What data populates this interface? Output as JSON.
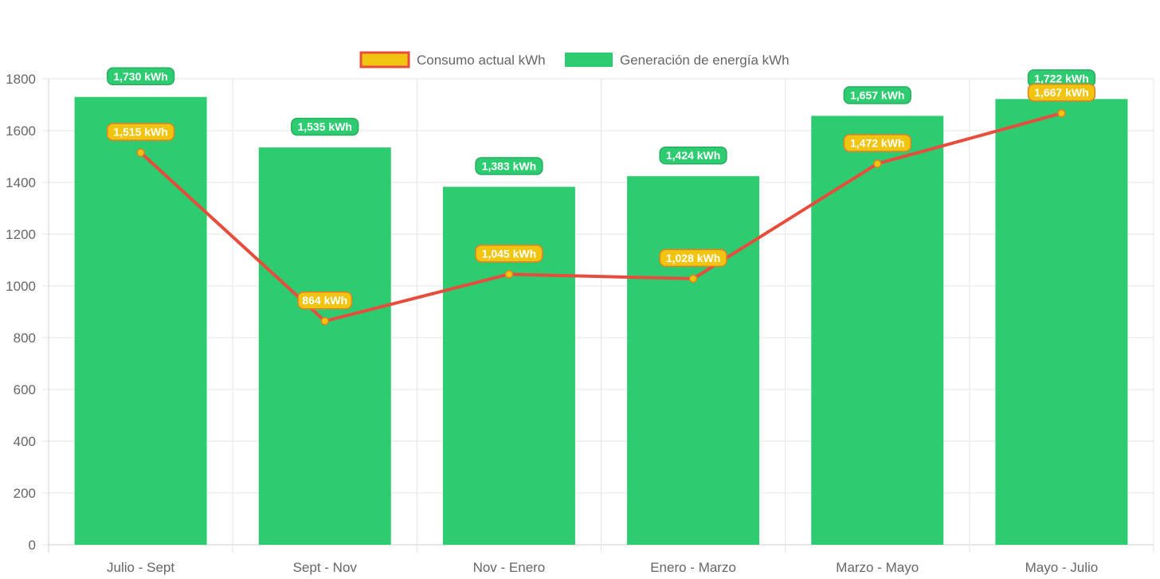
{
  "chart_data": {
    "type": "bar",
    "categories": [
      "Julio - Sept",
      "Sept - Nov",
      "Nov - Enero",
      "Enero - Marzo",
      "Marzo - Mayo",
      "Mayo - Julio"
    ],
    "series": [
      {
        "name": "Consumo actual kWh",
        "type": "line",
        "values": [
          1515,
          864,
          1045,
          1028,
          1472,
          1667
        ],
        "labels": [
          "1,515 kWh",
          "864 kWh",
          "1,045 kWh",
          "1,028 kWh",
          "1,472 kWh",
          "1,667 kWh"
        ],
        "color": "#e74c3c",
        "fill_color": "#f1c40f"
      },
      {
        "name": "Generación de energía kWh",
        "type": "bar",
        "values": [
          1730,
          1535,
          1383,
          1424,
          1657,
          1722
        ],
        "labels": [
          "1,730 kWh",
          "1,535 kWh",
          "1,383 kWh",
          "1,424 kWh",
          "1,657 kWh",
          "1,722 kWh"
        ],
        "color": "#2ecc71"
      }
    ],
    "y_ticks": [
      "0",
      "200",
      "400",
      "600",
      "800",
      "1000",
      "1200",
      "1400",
      "1600",
      "1800"
    ],
    "ylim": [
      0,
      1800
    ],
    "grid": true,
    "legend_position": "top-center"
  }
}
